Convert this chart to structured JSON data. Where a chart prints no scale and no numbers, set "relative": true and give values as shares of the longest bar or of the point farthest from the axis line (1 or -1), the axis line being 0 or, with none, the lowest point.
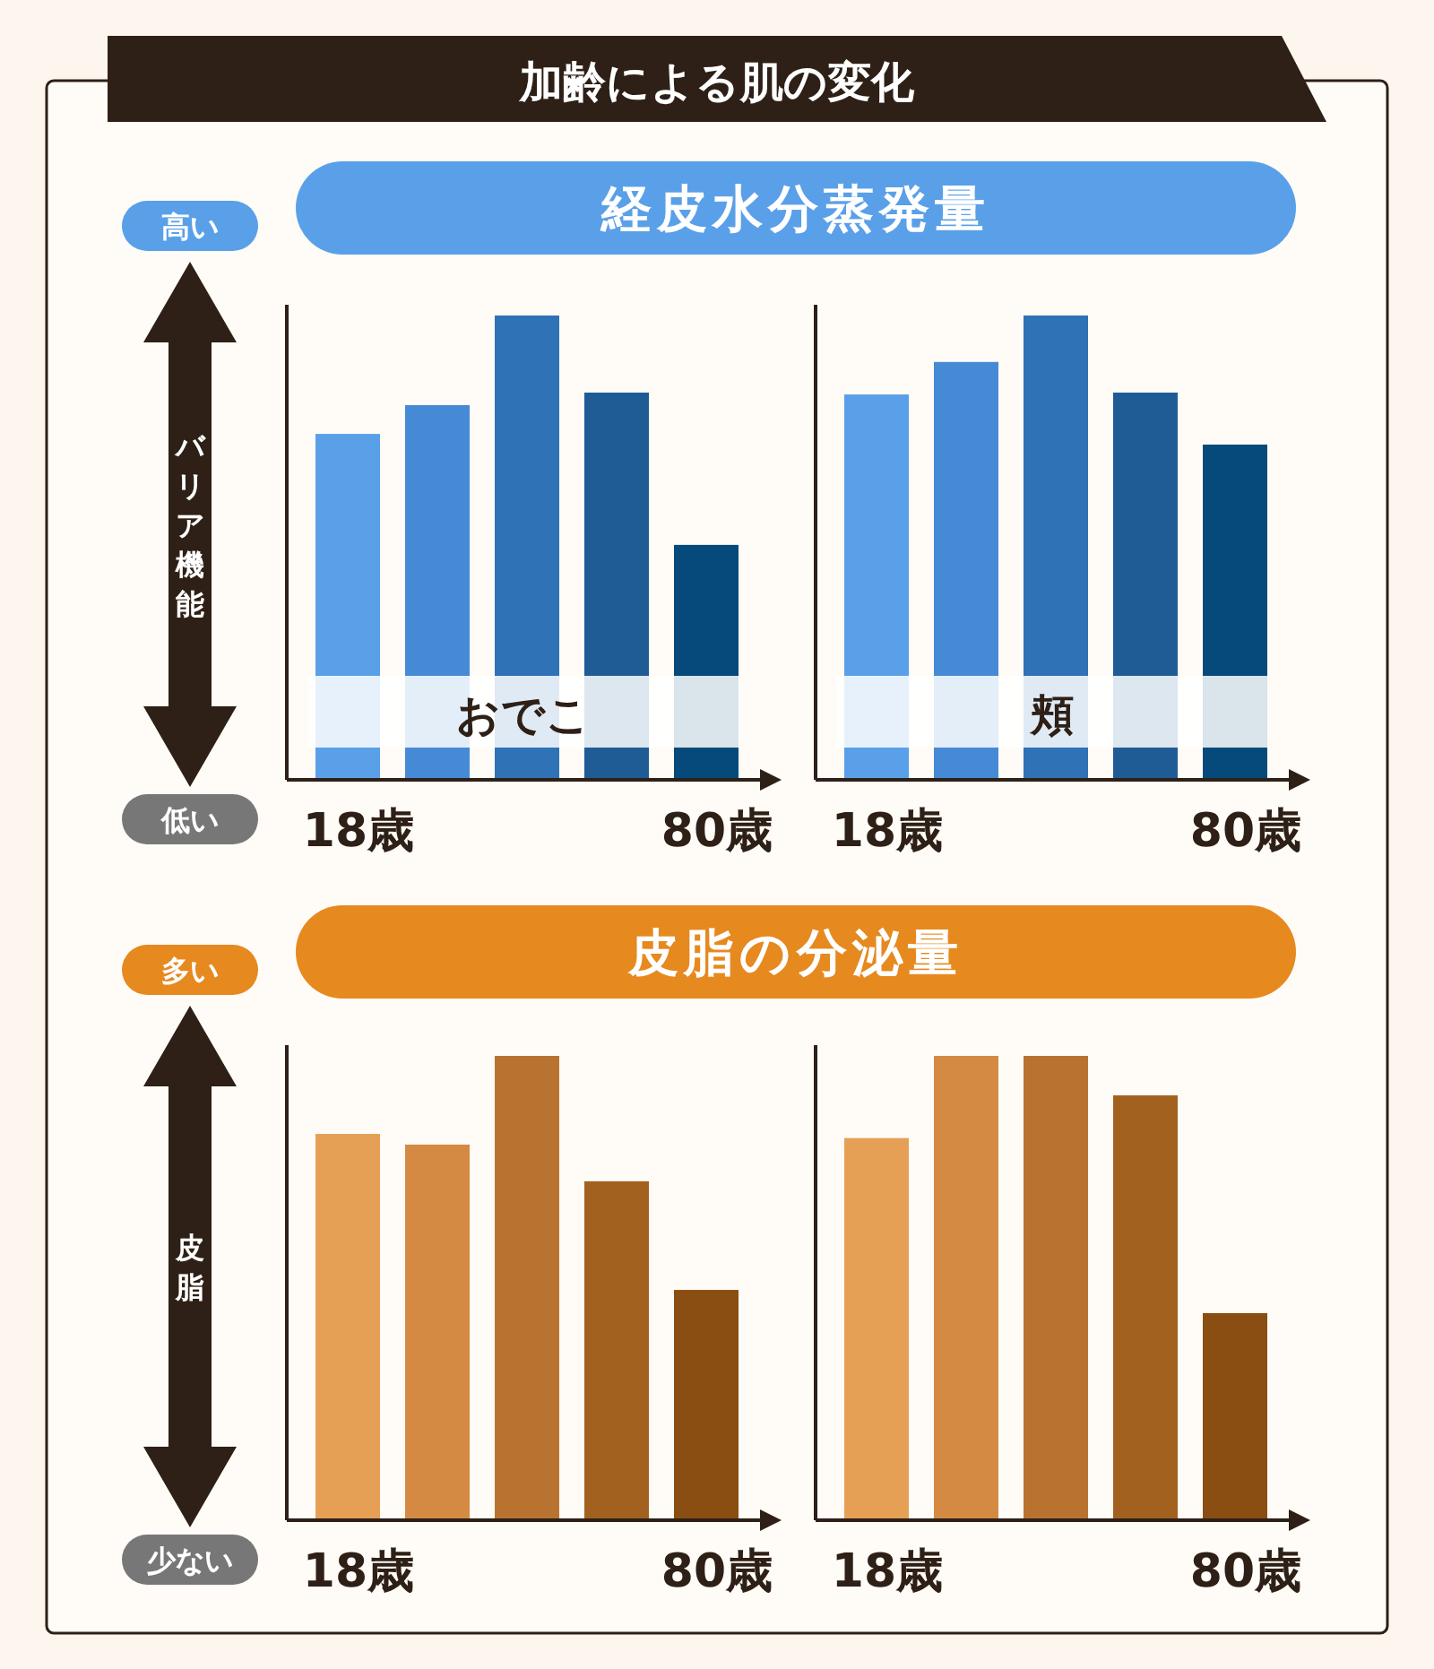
{
  "chart_data": [
    {
      "type": "bar",
      "title": "加齢による肌の変化",
      "subtitle": "経皮水分蒸発量",
      "ylabel": "バリア機能",
      "annotations": [
        "高い",
        "低い",
        "おでこ"
      ],
      "categories": [
        "18歳",
        null,
        null,
        null,
        "80歳"
      ],
      "relative": true,
      "colors": [
        "#5aa0e8",
        "#468ad6",
        "#2f72b5",
        "#1f5c96",
        "#054a7a"
      ],
      "values": [
        0.745,
        0.807,
        1,
        0.834,
        0.506
      ]
    },
    {
      "type": "bar",
      "annotations": [
        "頬"
      ],
      "categories": [
        "18歳",
        null,
        null,
        null,
        "80歳"
      ],
      "relative": true,
      "colors": [
        "#5aa0e8",
        "#468ad6",
        "#2f72b5",
        "#1f5c96",
        "#054a7a"
      ],
      "values": [
        0.83,
        0.9,
        1,
        0.834,
        0.722
      ]
    },
    {
      "type": "bar",
      "subtitle": "皮脂の分泌量",
      "ylabel": "皮脂",
      "annotations": [
        "多い",
        "少ない"
      ],
      "categories": [
        "18歳",
        null,
        null,
        null,
        "80歳"
      ],
      "relative": true,
      "colors": [
        "#e6a055",
        "#d48a42",
        "#b87330",
        "#a3611f",
        "#8a4e12"
      ],
      "values": [
        0.832,
        0.809,
        1,
        0.73,
        0.496
      ]
    },
    {
      "type": "bar",
      "categories": [
        "18歳",
        null,
        null,
        null,
        "80歳"
      ],
      "relative": true,
      "colors": [
        "#e6a055",
        "#d48a42",
        "#b87330",
        "#a3611f",
        "#8a4e12"
      ],
      "values": [
        0.823,
        1,
        1,
        0.915,
        0.446
      ]
    }
  ]
}
